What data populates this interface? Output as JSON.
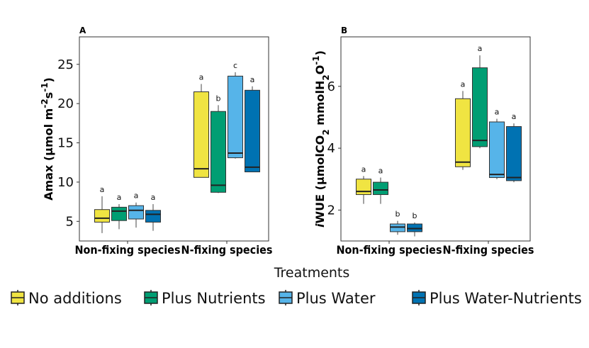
{
  "chart_data": [
    {
      "type": "box",
      "panel_label": "A",
      "ylabel": "Amax (µmol m⁻²s⁻¹)",
      "ylim": [
        2.5,
        28.5
      ],
      "yticks": [
        5,
        10,
        15,
        20,
        25
      ],
      "groups": [
        "Non-fixing species",
        "N-fixing species"
      ],
      "series_order": [
        "No additions",
        "Plus Nutrients",
        "Plus Water",
        "Plus Water-Nutrients"
      ],
      "boxes": [
        {
          "group": 0,
          "series": 0,
          "min": 3.5,
          "q1": 4.9,
          "median": 5.4,
          "q3": 6.5,
          "max": 8.2,
          "letter": "a"
        },
        {
          "group": 0,
          "series": 1,
          "min": 4.0,
          "q1": 5.1,
          "median": 6.3,
          "q3": 6.8,
          "max": 7.2,
          "letter": "a"
        },
        {
          "group": 0,
          "series": 2,
          "min": 4.2,
          "q1": 5.3,
          "median": 6.4,
          "q3": 7.0,
          "max": 7.4,
          "letter": "a"
        },
        {
          "group": 0,
          "series": 3,
          "min": 3.8,
          "q1": 4.9,
          "median": 5.9,
          "q3": 6.4,
          "max": 7.2,
          "letter": "a"
        },
        {
          "group": 1,
          "series": 0,
          "min": 10.6,
          "q1": 10.6,
          "median": 11.7,
          "q3": 21.5,
          "max": 22.5,
          "letter": "a"
        },
        {
          "group": 1,
          "series": 1,
          "min": 8.6,
          "q1": 8.7,
          "median": 9.6,
          "q3": 19.0,
          "max": 19.8,
          "letter": "b"
        },
        {
          "group": 1,
          "series": 2,
          "min": 13.0,
          "q1": 13.1,
          "median": 13.7,
          "q3": 23.5,
          "max": 24.0,
          "letter": "c"
        },
        {
          "group": 1,
          "series": 3,
          "min": 11.3,
          "q1": 11.3,
          "median": 11.9,
          "q3": 21.7,
          "max": 22.2,
          "letter": "a"
        }
      ]
    },
    {
      "type": "box",
      "panel_label": "B",
      "ylabel_pre": "i",
      "ylabel_main": "WUE (µmolCO",
      "ylabel_sub": "2",
      "ylabel_mid": " mmolH",
      "ylabel_sub2": "2",
      "ylabel_post": "O",
      "ylabel_sup": "-1",
      "ylabel_end": ")",
      "ylim": [
        1.0,
        7.6
      ],
      "yticks": [
        2,
        4,
        6
      ],
      "groups": [
        "Non-fixing species",
        "N-fixing species"
      ],
      "series_order": [
        "No additions",
        "Plus Nutrients",
        "Plus Water",
        "Plus Water-Nutrients"
      ],
      "boxes": [
        {
          "group": 0,
          "series": 0,
          "min": 2.2,
          "q1": 2.5,
          "median": 2.6,
          "q3": 3.0,
          "max": 3.1,
          "letter": "a"
        },
        {
          "group": 0,
          "series": 1,
          "min": 2.2,
          "q1": 2.5,
          "median": 2.65,
          "q3": 2.9,
          "max": 3.05,
          "letter": "a"
        },
        {
          "group": 0,
          "series": 2,
          "min": 1.2,
          "q1": 1.3,
          "median": 1.45,
          "q3": 1.55,
          "max": 1.65,
          "letter": "b"
        },
        {
          "group": 0,
          "series": 3,
          "min": 1.15,
          "q1": 1.3,
          "median": 1.4,
          "q3": 1.55,
          "max": 1.6,
          "letter": "b"
        },
        {
          "group": 1,
          "series": 0,
          "min": 3.3,
          "q1": 3.4,
          "median": 3.55,
          "q3": 5.6,
          "max": 5.85,
          "letter": "a"
        },
        {
          "group": 1,
          "series": 1,
          "min": 4.0,
          "q1": 4.05,
          "median": 4.25,
          "q3": 6.6,
          "max": 7.0,
          "letter": "a"
        },
        {
          "group": 1,
          "series": 2,
          "min": 3.0,
          "q1": 3.05,
          "median": 3.15,
          "q3": 4.85,
          "max": 4.95,
          "letter": "a"
        },
        {
          "group": 1,
          "series": 3,
          "min": 2.9,
          "q1": 2.95,
          "median": 3.05,
          "q3": 4.7,
          "max": 4.8,
          "letter": "a"
        }
      ]
    }
  ],
  "xlabel": "Treatments",
  "legend": [
    {
      "label": "No additions",
      "color": "#f0e442"
    },
    {
      "label": "Plus Nutrients",
      "color": "#009e73"
    },
    {
      "label": "Plus Water",
      "color": "#56b4e9"
    },
    {
      "label": "Plus Water-Nutrients",
      "color": "#0072b2"
    }
  ],
  "legend_position": "bottom",
  "colors": {
    "No additions": "#f0e442",
    "Plus Nutrients": "#009e73",
    "Plus Water": "#56b4e9",
    "Plus Water-Nutrients": "#0072b2"
  }
}
